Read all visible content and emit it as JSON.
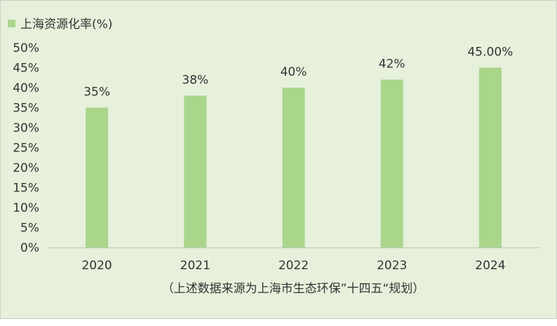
{
  "chart_data": {
    "type": "bar",
    "categories": [
      "2020",
      "2021",
      "2022",
      "2023",
      "2024"
    ],
    "series": [
      {
        "name": "上海资源化率(%)",
        "values": [
          35,
          38,
          40,
          42,
          45
        ],
        "data_labels": [
          "35%",
          "38%",
          "40%",
          "42%",
          "45.00%"
        ],
        "color": "#aad68c"
      }
    ],
    "ylim": [
      0,
      50
    ],
    "yticks": [
      "0%",
      "5%",
      "10%",
      "15%",
      "20%",
      "25%",
      "30%",
      "35%",
      "40%",
      "45%",
      "50%"
    ],
    "legend_position": "top-left",
    "grid": false,
    "note": "（上述数据来源为上海市生态环保”十四五“规划）"
  }
}
